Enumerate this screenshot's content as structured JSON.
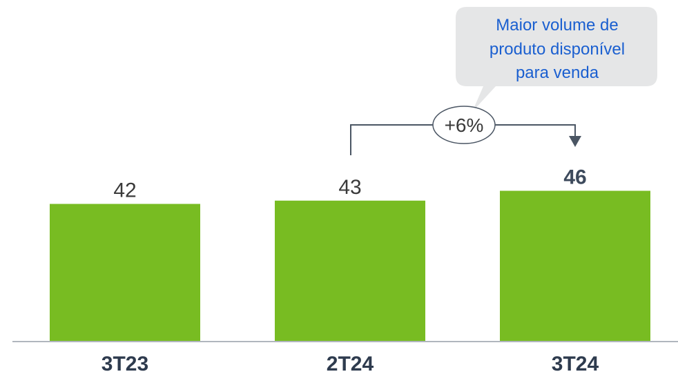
{
  "chart_data": {
    "type": "bar",
    "categories": [
      "3T23",
      "2T24",
      "3T24"
    ],
    "values": [
      42,
      43,
      46
    ],
    "value_labels": [
      "42",
      "43",
      "46"
    ],
    "highlight_index": 2,
    "title": "",
    "xlabel": "",
    "ylabel": "",
    "ylim": [
      0,
      50
    ],
    "grid": false,
    "bar_color": "#78bc22",
    "baseline_color": "#b0b6be",
    "comparison": {
      "from_category": "2T24",
      "to_category": "3T24",
      "label": "+6%",
      "color": "#4a5563"
    },
    "annotation": {
      "lines": [
        "Maior volume de",
        "produto disponível",
        "para venda"
      ],
      "background": "#e5e6e7",
      "text_color": "#1a5fd0"
    }
  }
}
